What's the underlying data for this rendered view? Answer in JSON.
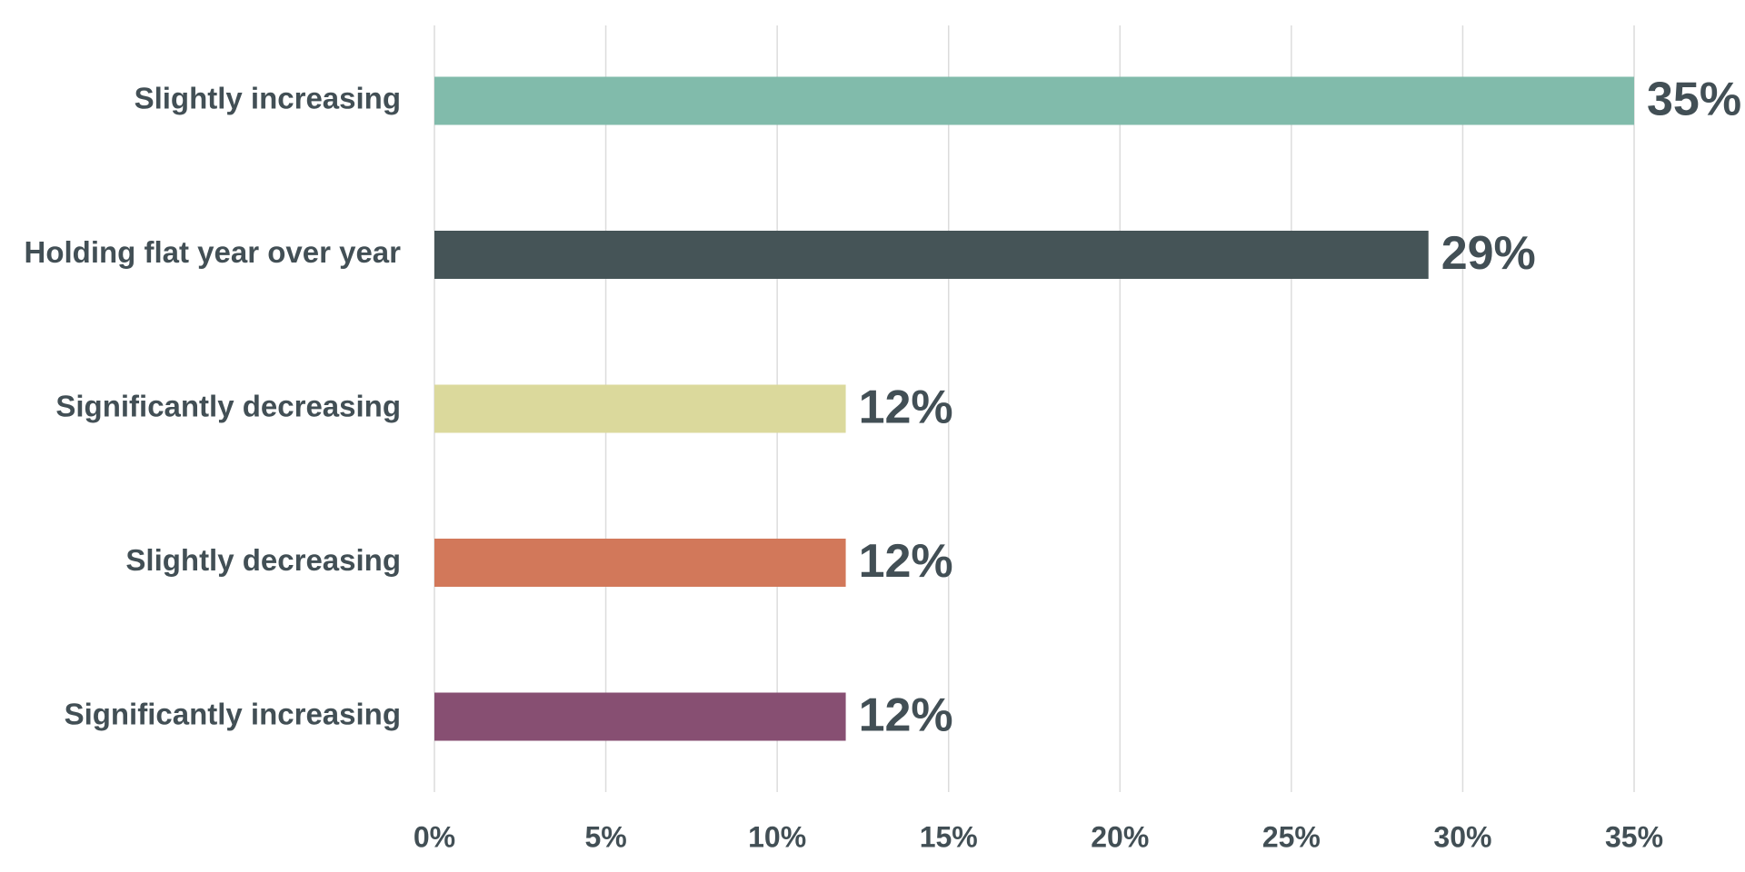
{
  "chart_data": {
    "type": "bar",
    "orientation": "horizontal",
    "categories": [
      "Slightly increasing",
      "Holding flat year over year",
      "Significantly decreasing",
      "Slightly decreasing",
      "Significantly increasing"
    ],
    "values": [
      35,
      29,
      12,
      12,
      12
    ],
    "value_labels": [
      "35%",
      "29%",
      "12%",
      "12%",
      "12%"
    ],
    "colors": [
      "#81bbab",
      "#455457",
      "#dbd99c",
      "#d2785a",
      "#874f72"
    ],
    "x_ticks": [
      0,
      5,
      10,
      15,
      20,
      25,
      30,
      35
    ],
    "x_tick_labels": [
      "0%",
      "5%",
      "10%",
      "15%",
      "20%",
      "25%",
      "30%",
      "35%"
    ],
    "xlim": [
      0,
      35
    ],
    "title": "",
    "xlabel": "",
    "ylabel": "",
    "grid": "vertical",
    "legend": "none",
    "text_color": "#424f55",
    "grid_color": "#dcdcdc"
  }
}
